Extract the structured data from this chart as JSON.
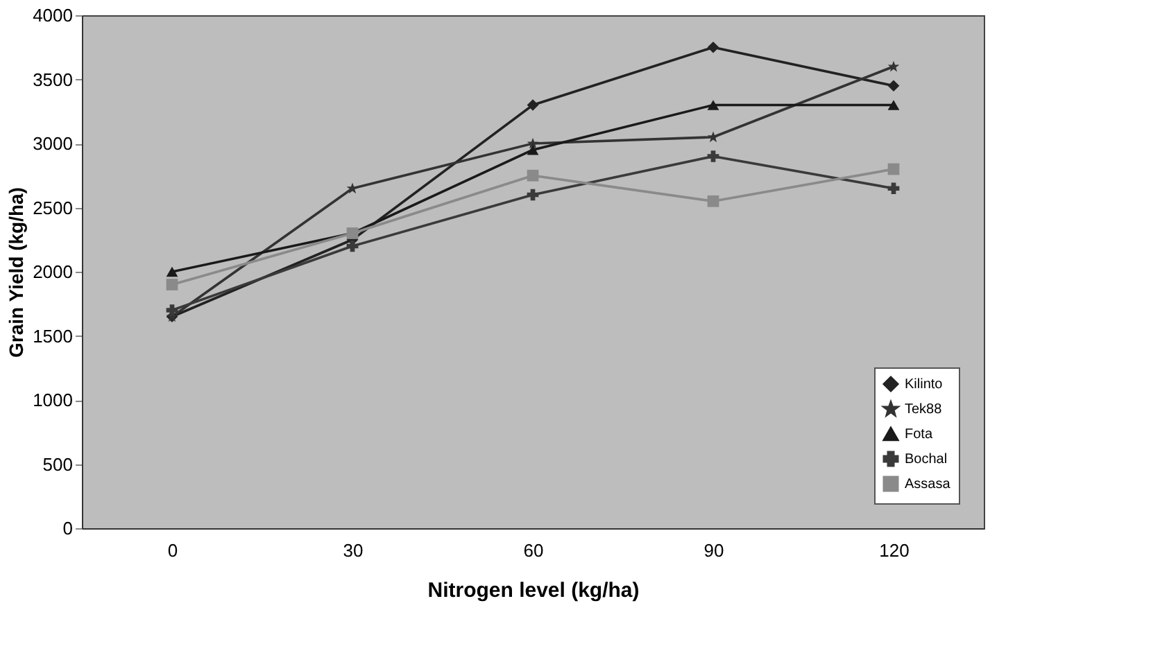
{
  "chart_data": {
    "type": "line",
    "xlabel": "Nitrogen level (kg/ha)",
    "ylabel": "Grain Yield (kg/ha)",
    "categories": [
      "0",
      "30",
      "60",
      "90",
      "120"
    ],
    "series": [
      {
        "name": "Kilinto",
        "color": "#222222",
        "marker": "diamond",
        "values": [
          1650,
          2250,
          3300,
          3750,
          3450
        ]
      },
      {
        "name": "Tek88",
        "color": "#333333",
        "marker": "star",
        "values": [
          1650,
          2650,
          3000,
          3050,
          3600
        ]
      },
      {
        "name": "Fota",
        "color": "#1a1a1a",
        "marker": "triangle",
        "values": [
          2000,
          2300,
          2950,
          3300,
          3300
        ]
      },
      {
        "name": "Bochal",
        "color": "#3a3a3a",
        "marker": "cross",
        "values": [
          1700,
          2200,
          2600,
          2900,
          2650
        ]
      },
      {
        "name": "Assasa",
        "color": "#8a8a8a",
        "marker": "square",
        "values": [
          1900,
          2300,
          2750,
          2550,
          2800
        ]
      }
    ],
    "ylim": [
      0,
      4000
    ],
    "yticks": [
      0,
      500,
      1000,
      1500,
      2000,
      2500,
      3000,
      3500,
      4000
    ],
    "grid": false,
    "legend": "bottom right",
    "line_style": "solid"
  }
}
